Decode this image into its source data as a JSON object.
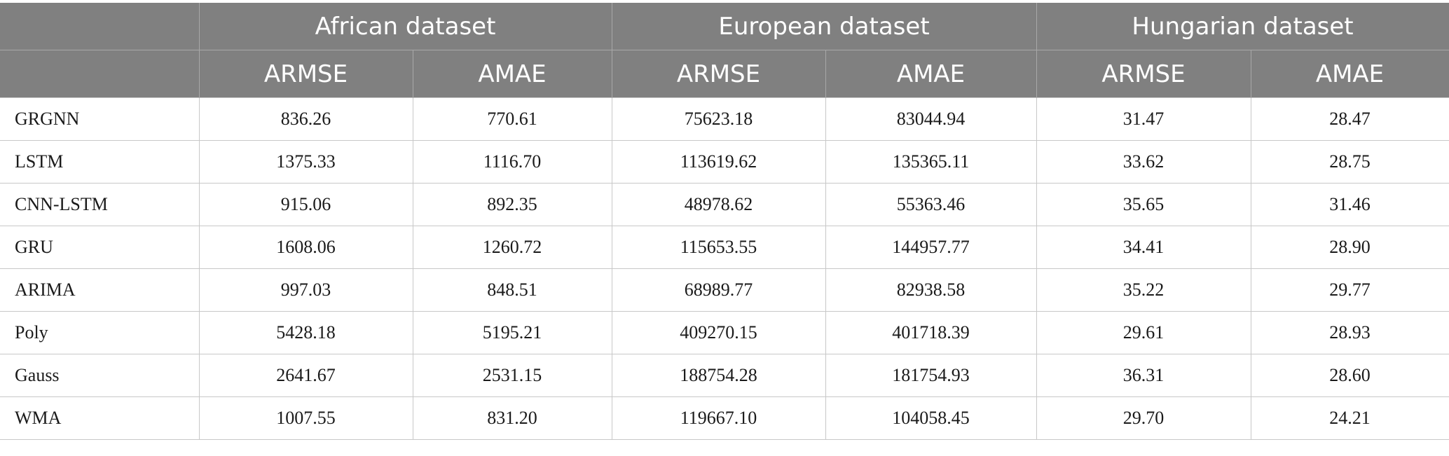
{
  "table": {
    "groups": [
      "African dataset",
      "European dataset",
      "Hungarian dataset"
    ],
    "metrics": [
      "ARMSE",
      "AMAE",
      "ARMSE",
      "AMAE",
      "ARMSE",
      "AMAE"
    ],
    "rows": [
      {
        "method": "GRGNN",
        "values": [
          "836.26",
          "770.61",
          "75623.18",
          "83044.94",
          "31.47",
          "28.47"
        ]
      },
      {
        "method": "LSTM",
        "values": [
          "1375.33",
          "1116.70",
          "113619.62",
          "135365.11",
          "33.62",
          "28.75"
        ]
      },
      {
        "method": "CNN-LSTM",
        "values": [
          "915.06",
          "892.35",
          "48978.62",
          "55363.46",
          "35.65",
          "31.46"
        ]
      },
      {
        "method": "GRU",
        "values": [
          "1608.06",
          "1260.72",
          "115653.55",
          "144957.77",
          "34.41",
          "28.90"
        ]
      },
      {
        "method": "ARIMA",
        "values": [
          "997.03",
          "848.51",
          "68989.77",
          "82938.58",
          "35.22",
          "29.77"
        ]
      },
      {
        "method": "Poly",
        "values": [
          "5428.18",
          "5195.21",
          "409270.15",
          "401718.39",
          "29.61",
          "28.93"
        ]
      },
      {
        "method": "Gauss",
        "values": [
          "2641.67",
          "2531.15",
          "188754.28",
          "181754.93",
          "36.31",
          "28.60"
        ]
      },
      {
        "method": "WMA",
        "values": [
          "1007.55",
          "831.20",
          "119667.10",
          "104058.45",
          "29.70",
          "24.21"
        ]
      }
    ]
  },
  "colors": {
    "header_bg": "#808080",
    "header_text": "#ffffff",
    "grid": "#c8c8c8"
  }
}
